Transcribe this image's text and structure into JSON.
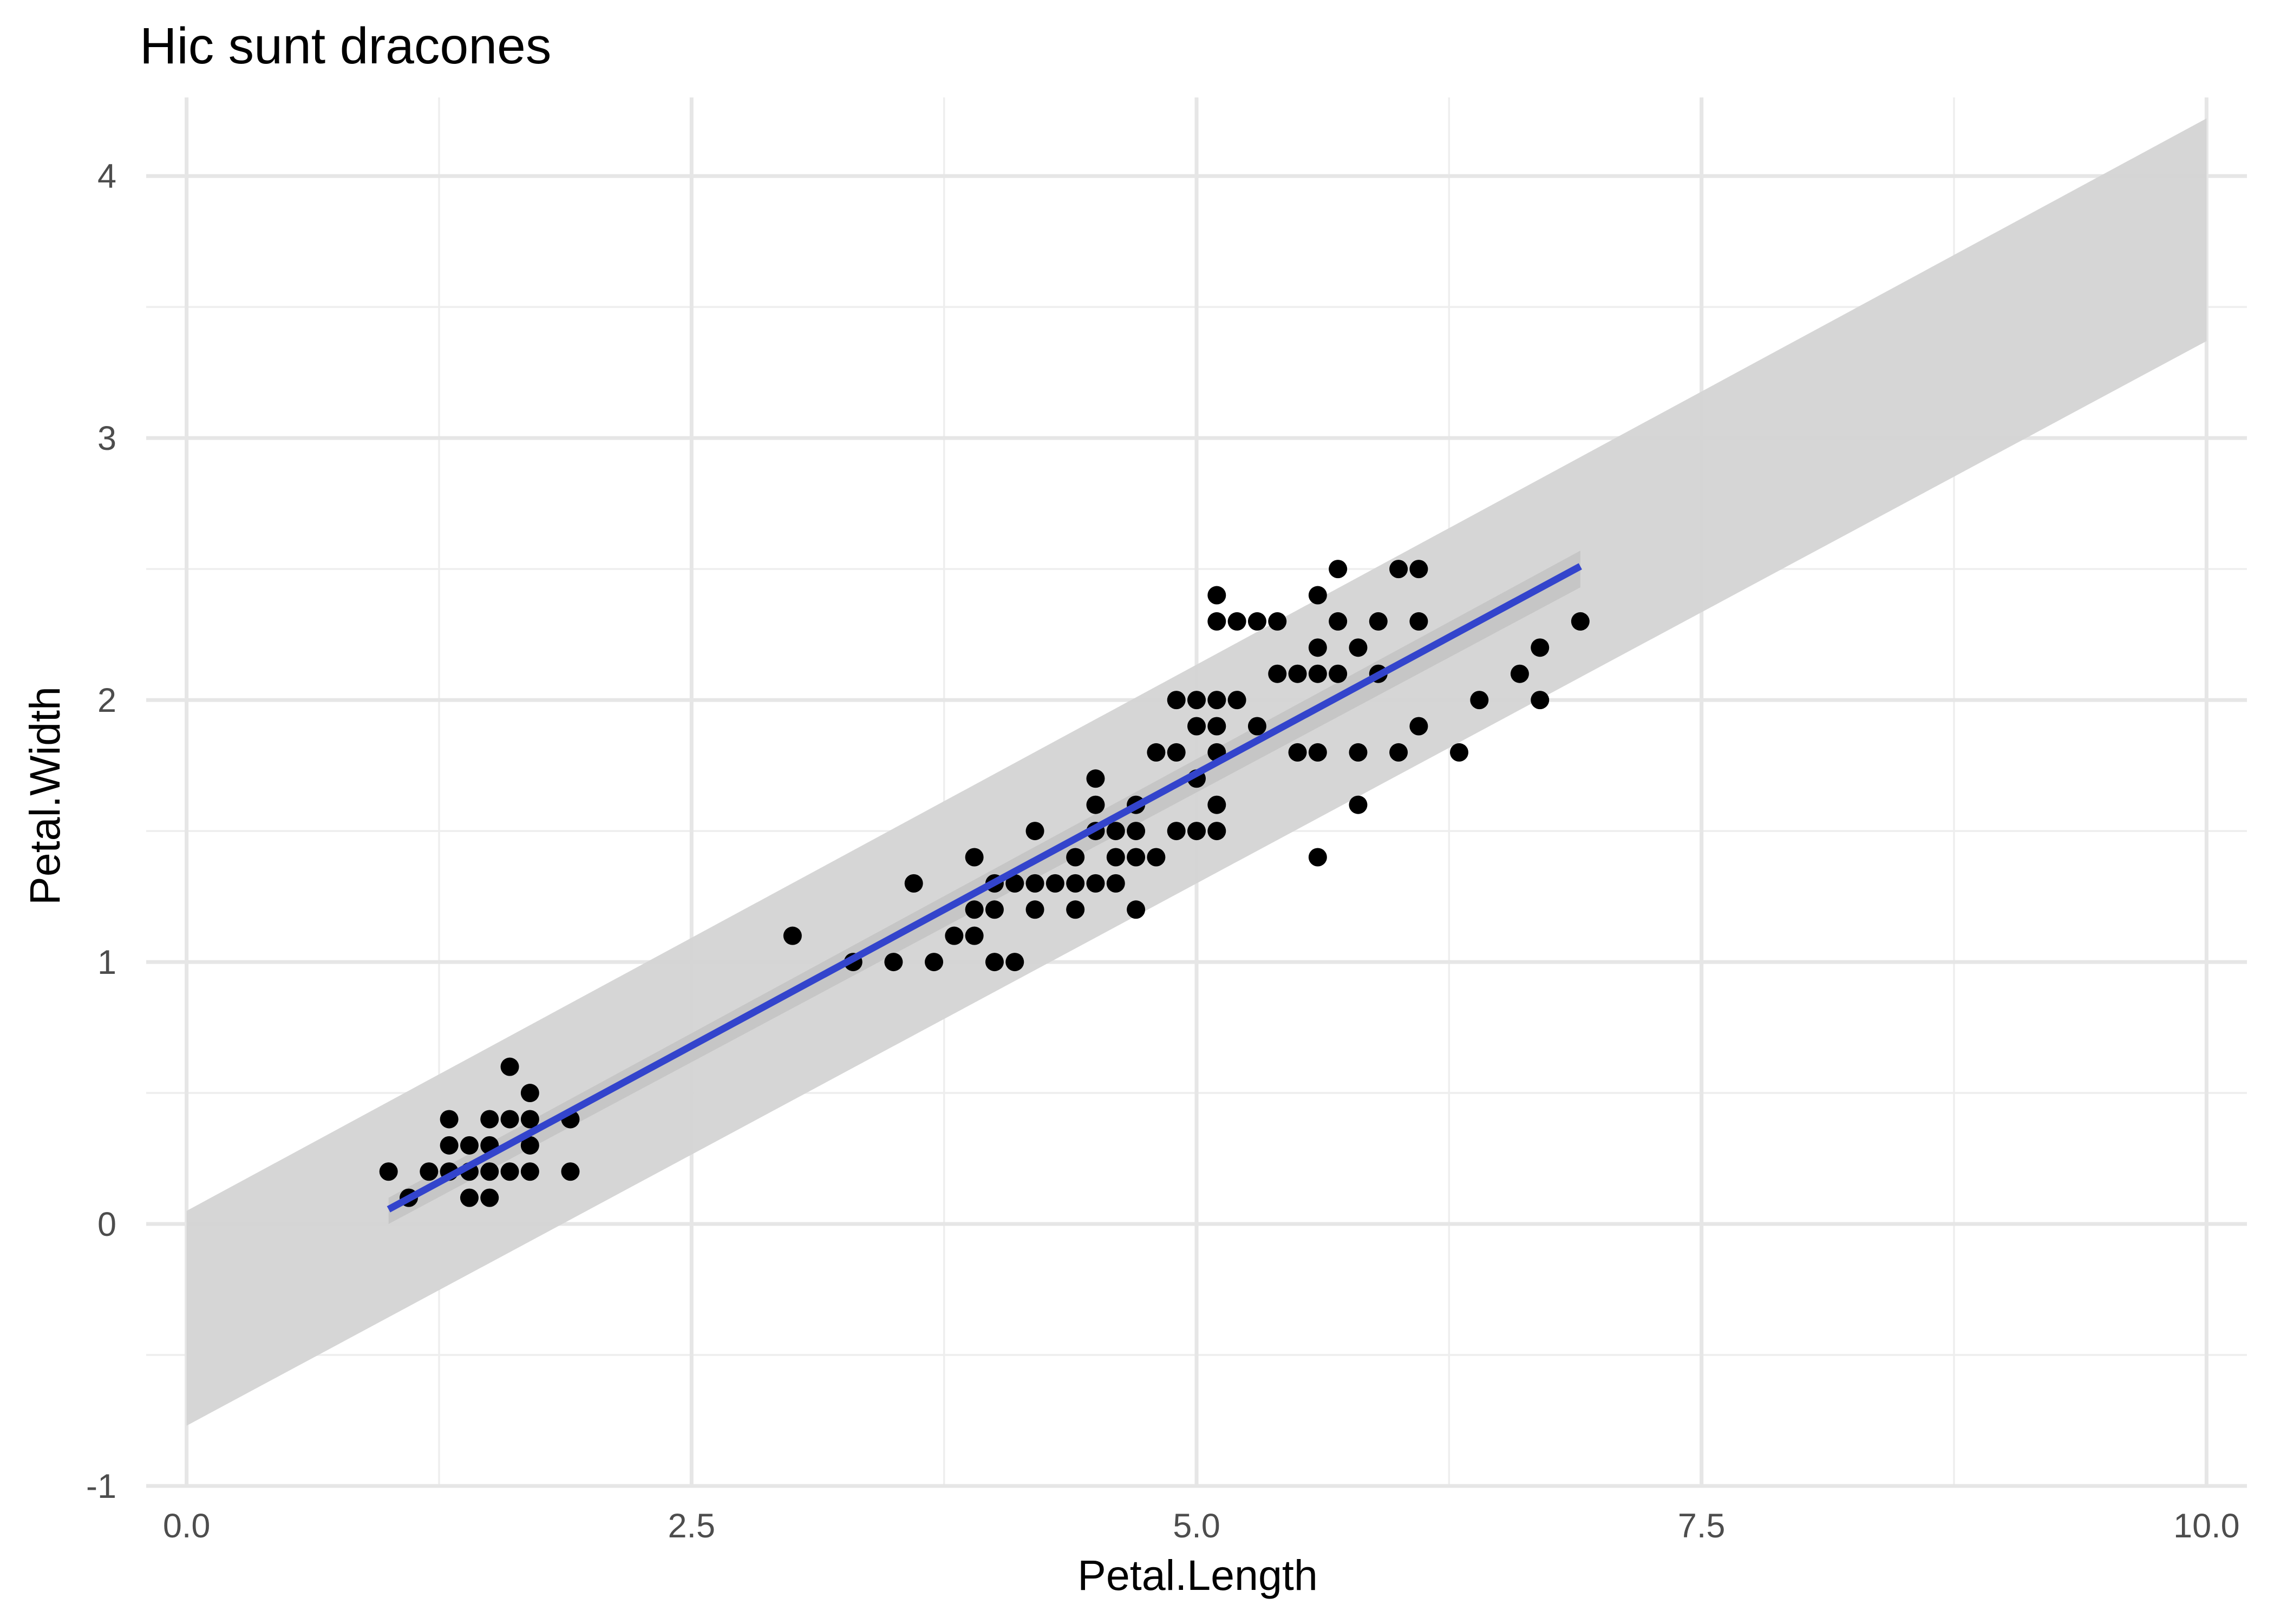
{
  "chart_data": {
    "type": "scatter",
    "title": "Hic sunt dracones",
    "xlabel": "Petal.Length",
    "ylabel": "Petal.Width",
    "xlim": [
      -0.2,
      10.2
    ],
    "ylim": [
      -1.0,
      4.3
    ],
    "x_ticks": [
      0,
      2.5,
      5,
      7.5,
      10
    ],
    "x_tick_labels": [
      "0.0",
      "2.5",
      "5.0",
      "7.5",
      "10.0"
    ],
    "y_ticks": [
      -1,
      0,
      1,
      2,
      3,
      4
    ],
    "y_tick_labels": [
      "-1",
      "0",
      "1",
      "2",
      "3",
      "4"
    ],
    "grid": true,
    "colors": {
      "points": "#000000",
      "fit_line": "#3344cc",
      "prediction_band": "#d4d4d4",
      "confidence_band": "#bfbfbf"
    },
    "regression": {
      "x_range": [
        1.0,
        6.9
      ],
      "intercept": -0.36,
      "slope": 0.416
    },
    "prediction_band": {
      "x": [
        0,
        10
      ],
      "lower": [
        -0.77,
        3.37
      ],
      "upper": [
        0.05,
        4.22
      ]
    },
    "confidence_band": {
      "x": [
        1.0,
        6.9
      ],
      "lower": [
        0.0,
        2.43
      ],
      "upper": [
        0.1,
        2.57
      ]
    },
    "points": [
      [
        1.0,
        0.2
      ],
      [
        1.1,
        0.1
      ],
      [
        1.2,
        0.2
      ],
      [
        1.3,
        0.2
      ],
      [
        1.3,
        0.3
      ],
      [
        1.3,
        0.4
      ],
      [
        1.4,
        0.1
      ],
      [
        1.4,
        0.2
      ],
      [
        1.4,
        0.3
      ],
      [
        1.5,
        0.1
      ],
      [
        1.5,
        0.2
      ],
      [
        1.5,
        0.3
      ],
      [
        1.5,
        0.4
      ],
      [
        1.6,
        0.2
      ],
      [
        1.6,
        0.4
      ],
      [
        1.6,
        0.6
      ],
      [
        1.7,
        0.2
      ],
      [
        1.7,
        0.3
      ],
      [
        1.7,
        0.4
      ],
      [
        1.7,
        0.5
      ],
      [
        1.9,
        0.2
      ],
      [
        1.9,
        0.4
      ],
      [
        3.0,
        1.1
      ],
      [
        3.3,
        1.0
      ],
      [
        3.5,
        1.0
      ],
      [
        3.6,
        1.3
      ],
      [
        3.7,
        1.0
      ],
      [
        3.8,
        1.1
      ],
      [
        3.9,
        1.1
      ],
      [
        3.9,
        1.2
      ],
      [
        3.9,
        1.4
      ],
      [
        4.0,
        1.0
      ],
      [
        4.0,
        1.2
      ],
      [
        4.0,
        1.3
      ],
      [
        4.1,
        1.0
      ],
      [
        4.1,
        1.3
      ],
      [
        4.2,
        1.2
      ],
      [
        4.2,
        1.3
      ],
      [
        4.2,
        1.5
      ],
      [
        4.3,
        1.3
      ],
      [
        4.4,
        1.2
      ],
      [
        4.4,
        1.3
      ],
      [
        4.4,
        1.4
      ],
      [
        4.5,
        1.3
      ],
      [
        4.5,
        1.5
      ],
      [
        4.5,
        1.6
      ],
      [
        4.5,
        1.7
      ],
      [
        4.6,
        1.3
      ],
      [
        4.6,
        1.4
      ],
      [
        4.6,
        1.5
      ],
      [
        4.7,
        1.2
      ],
      [
        4.7,
        1.4
      ],
      [
        4.7,
        1.5
      ],
      [
        4.7,
        1.6
      ],
      [
        4.8,
        1.4
      ],
      [
        4.8,
        1.8
      ],
      [
        4.9,
        1.5
      ],
      [
        4.9,
        1.8
      ],
      [
        4.9,
        2.0
      ],
      [
        5.0,
        1.5
      ],
      [
        5.0,
        1.7
      ],
      [
        5.0,
        1.9
      ],
      [
        5.0,
        2.0
      ],
      [
        5.1,
        1.5
      ],
      [
        5.1,
        1.6
      ],
      [
        5.1,
        1.8
      ],
      [
        5.1,
        1.9
      ],
      [
        5.1,
        2.0
      ],
      [
        5.1,
        2.3
      ],
      [
        5.1,
        2.4
      ],
      [
        5.2,
        2.0
      ],
      [
        5.2,
        2.3
      ],
      [
        5.3,
        1.9
      ],
      [
        5.3,
        2.3
      ],
      [
        5.4,
        2.1
      ],
      [
        5.4,
        2.3
      ],
      [
        5.5,
        1.8
      ],
      [
        5.5,
        2.1
      ],
      [
        5.6,
        1.4
      ],
      [
        5.6,
        1.8
      ],
      [
        5.6,
        2.1
      ],
      [
        5.6,
        2.2
      ],
      [
        5.6,
        2.4
      ],
      [
        5.7,
        2.1
      ],
      [
        5.7,
        2.3
      ],
      [
        5.7,
        2.5
      ],
      [
        5.8,
        1.6
      ],
      [
        5.8,
        1.8
      ],
      [
        5.8,
        2.2
      ],
      [
        5.9,
        2.1
      ],
      [
        5.9,
        2.3
      ],
      [
        6.0,
        1.8
      ],
      [
        6.0,
        2.5
      ],
      [
        6.1,
        1.9
      ],
      [
        6.1,
        2.3
      ],
      [
        6.1,
        2.5
      ],
      [
        6.3,
        1.8
      ],
      [
        6.4,
        2.0
      ],
      [
        6.6,
        2.1
      ],
      [
        6.7,
        2.0
      ],
      [
        6.7,
        2.2
      ],
      [
        6.9,
        2.3
      ]
    ]
  }
}
